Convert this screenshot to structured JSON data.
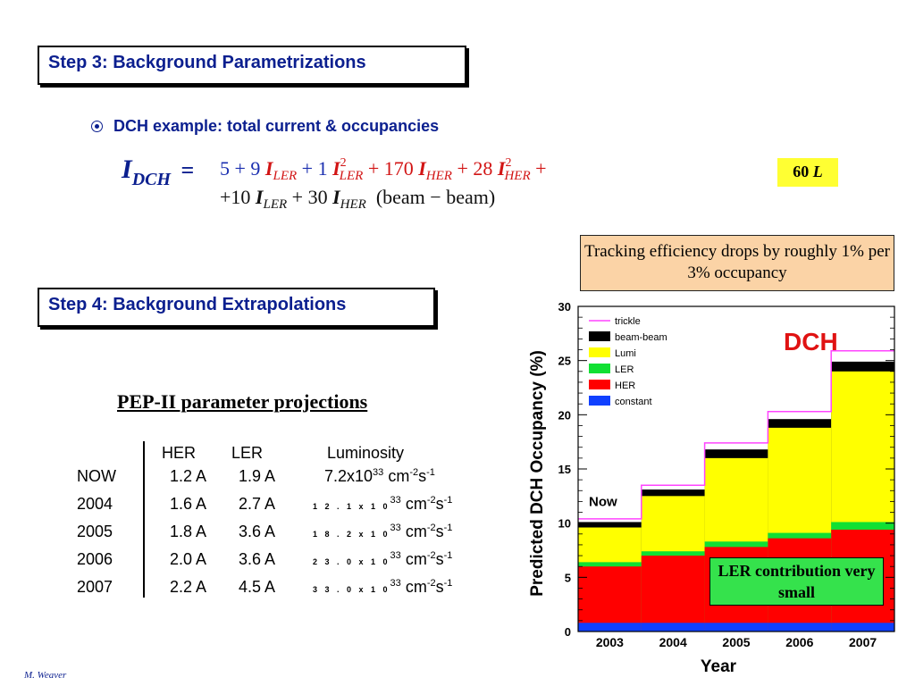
{
  "step3": {
    "title": "Step 3: Background Parametrizations"
  },
  "bullet": {
    "text": "DCH example: total current & occupancies"
  },
  "formula": {
    "lhs_var": "I",
    "lhs_sub": "DCH",
    "equals": "=",
    "line1": [
      {
        "t": "5 + 9 ",
        "c": "blue"
      },
      {
        "t": "I",
        "c": "red",
        "i": true
      },
      {
        "t": "LER",
        "c": "red",
        "sub": true
      },
      {
        "t": " + 1 ",
        "c": "blue"
      },
      {
        "t": "I",
        "c": "red",
        "i": true
      },
      {
        "t": "2",
        "c": "red",
        "sup": true
      },
      {
        "t": "LER",
        "c": "red",
        "sub": true
      },
      {
        "t": " + 170 ",
        "c": "red"
      },
      {
        "t": "I",
        "c": "red",
        "i": true
      },
      {
        "t": "HER",
        "c": "red",
        "sub": true
      },
      {
        "t": " + 28 ",
        "c": "red"
      },
      {
        "t": "I",
        "c": "red",
        "i": true
      },
      {
        "t": "2",
        "c": "red",
        "sup": true
      },
      {
        "t": "HER",
        "c": "red",
        "sub": true
      },
      {
        "t": " +",
        "c": "red"
      }
    ],
    "line2": [
      {
        "t": "+10 ",
        "c": "black"
      },
      {
        "t": "I",
        "c": "black",
        "i": true
      },
      {
        "t": "LER",
        "c": "black",
        "sub": true
      },
      {
        "t": " + 30 ",
        "c": "black"
      },
      {
        "t": "I",
        "c": "black",
        "i": true
      },
      {
        "t": "HER",
        "c": "black",
        "sub": true
      },
      {
        "t": "  (beam − beam)",
        "c": "black"
      }
    ],
    "lumi_num": "60",
    "lumi_var": "L"
  },
  "tracking_note": "Tracking efficiency drops by roughly 1% per 3% occupancy",
  "step4": {
    "title": "Step 4: Background Extrapolations"
  },
  "pep": {
    "title": "PEP-II parameter projections",
    "headers": {
      "her": "HER",
      "ler": "LER",
      "lumi": "Luminosity"
    },
    "unit_cm": "cm",
    "unit_cm_exp": "-2",
    "unit_s": "s",
    "unit_s_exp": "-1",
    "rows": [
      {
        "label": "NOW",
        "her": "1.2 A",
        "ler": "1.9 A",
        "lumi": "7.2x10",
        "exp": "33",
        "small": false
      },
      {
        "label": "2004",
        "her": "1.6 A",
        "ler": "2.7 A",
        "lumi": "1 2 . 1 x 1 0",
        "exp": "33",
        "small": true
      },
      {
        "label": "2005",
        "her": "1.8 A",
        "ler": "3.6 A",
        "lumi": "1 8 . 2 x 1 0",
        "exp": "33",
        "small": true
      },
      {
        "label": "2006",
        "her": "2.0 A",
        "ler": "3.6 A",
        "lumi": "2 3 . 0 x 1 0",
        "exp": "33",
        "small": true
      },
      {
        "label": "2007",
        "her": "2.2 A",
        "ler": "4.5 A",
        "lumi": "3 3 . 0 x 1 0",
        "exp": "33",
        "small": true
      }
    ]
  },
  "ler_note": "LER contribution very small",
  "footer": "M. Weaver",
  "chart_data": {
    "type": "area",
    "title": "DCH",
    "xlabel": "Year",
    "ylabel": "Predicted DCH Occupancy (%)",
    "categories": [
      "2003",
      "2004",
      "2005",
      "2006",
      "2007"
    ],
    "ylim": [
      0,
      30
    ],
    "yticks": [
      "0",
      "5",
      "10",
      "15",
      "20",
      "25",
      "30"
    ],
    "annotation": "Now",
    "stacked_tops": [
      {
        "name": "constant",
        "color": "#1040ff",
        "values": [
          0.8,
          0.8,
          0.8,
          0.8,
          0.8
        ]
      },
      {
        "name": "HER",
        "color": "#ff0000",
        "values": [
          6.0,
          7.0,
          7.8,
          8.6,
          9.4
        ]
      },
      {
        "name": "LER",
        "color": "#11e033",
        "values": [
          6.4,
          7.4,
          8.3,
          9.1,
          10.1
        ]
      },
      {
        "name": "Lumi",
        "color": "#ffff00",
        "values": [
          9.6,
          12.5,
          16.0,
          18.8,
          24.0
        ]
      },
      {
        "name": "beam-beam",
        "color": "#000000",
        "values": [
          10.1,
          13.1,
          16.8,
          19.6,
          24.9
        ]
      },
      {
        "name": "trickle",
        "color": "#ff44ff",
        "values": [
          10.4,
          13.5,
          17.4,
          20.3,
          25.9
        ]
      }
    ],
    "legend": [
      "trickle",
      "beam-beam",
      "Lumi",
      "LER",
      "HER",
      "constant"
    ],
    "legend_colors": [
      "#ff44ff",
      "#000000",
      "#ffff00",
      "#11e033",
      "#ff0000",
      "#1040ff"
    ],
    "legend_line": "trickle"
  }
}
